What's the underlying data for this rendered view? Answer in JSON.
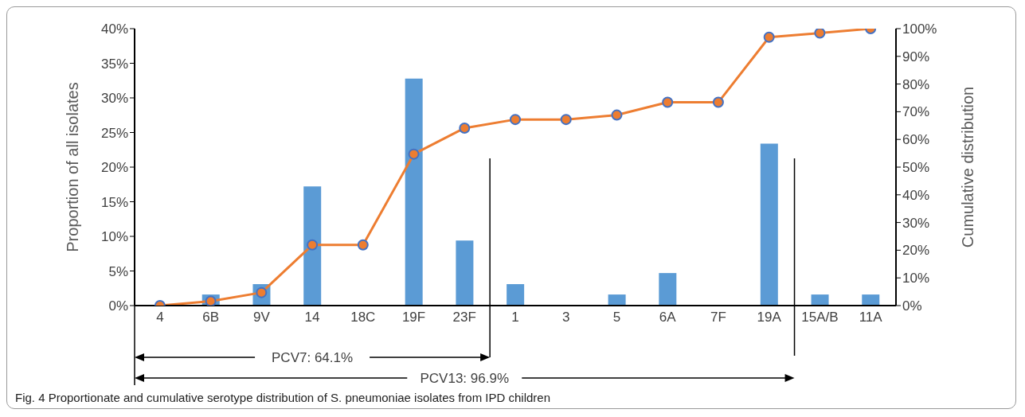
{
  "chart_data": {
    "type": "bar",
    "categories": [
      "4",
      "6B",
      "9V",
      "14",
      "18C",
      "19F",
      "23F",
      "1",
      "3",
      "5",
      "6A",
      "7F",
      "19A",
      "15A/B",
      "11A"
    ],
    "series": [
      {
        "color": "#5b9bd5",
        "values": [
          0,
          1.6,
          3.1,
          17.2,
          0,
          32.8,
          9.4,
          3.1,
          0,
          1.6,
          4.7,
          0,
          23.4,
          1.6,
          1.6
        ]
      },
      {
        "type": "line",
        "axis": "y2",
        "color": "#ed7d31",
        "values": [
          0,
          1.6,
          4.7,
          21.9,
          21.9,
          54.7,
          64.1,
          67.2,
          67.2,
          68.8,
          73.4,
          73.4,
          96.9,
          98.4,
          100
        ]
      }
    ],
    "ylabel": "Proportion of all isolates",
    "y2label": "Cumulative distribution",
    "ylim": [
      0,
      40
    ],
    "yticks": [
      {
        "value": 0,
        "label": "0%"
      },
      {
        "value": 5,
        "label": "5%"
      },
      {
        "value": 10,
        "label": "10%"
      },
      {
        "value": 15,
        "label": "15%"
      },
      {
        "value": 20,
        "label": "20%"
      },
      {
        "value": 25,
        "label": "25%"
      },
      {
        "value": 30,
        "label": "30%"
      },
      {
        "value": 35,
        "label": "35%"
      },
      {
        "value": 40,
        "label": "40%"
      }
    ],
    "y2lim": [
      0,
      100
    ],
    "y2ticks": [
      {
        "value": 0,
        "label": "0%"
      },
      {
        "value": 10,
        "label": "10%"
      },
      {
        "value": 20,
        "label": "20%"
      },
      {
        "value": 30,
        "label": "30%"
      },
      {
        "value": 40,
        "label": "40%"
      },
      {
        "value": 50,
        "label": "50%"
      },
      {
        "value": 60,
        "label": "60%"
      },
      {
        "value": 70,
        "label": "70%"
      },
      {
        "value": 80,
        "label": "80%"
      },
      {
        "value": 90,
        "label": "90%"
      },
      {
        "value": 100,
        "label": "100%"
      }
    ],
    "marker": "circle",
    "line_style": "solid",
    "grid": false,
    "legend": false,
    "annotations": [
      "PCV7: 64.1%",
      "PCV13: 96.9%",
      "Fig. 4  Proportionate and cumulative serotype distribution of S. pneumoniae isolates from IPD children"
    ]
  }
}
